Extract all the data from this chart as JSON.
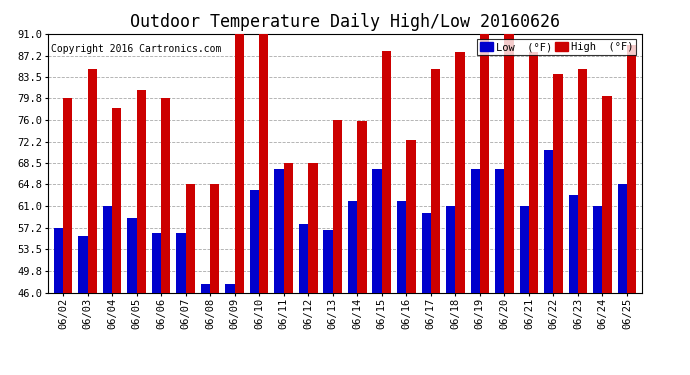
{
  "title": "Outdoor Temperature Daily High/Low 20160626",
  "copyright": "Copyright 2016 Cartronics.com",
  "legend_low": "Low  (°F)",
  "legend_high": "High  (°F)",
  "dates": [
    "06/02",
    "06/03",
    "06/04",
    "06/05",
    "06/06",
    "06/07",
    "06/08",
    "06/09",
    "06/10",
    "06/11",
    "06/12",
    "06/13",
    "06/14",
    "06/15",
    "06/16",
    "06/17",
    "06/18",
    "06/19",
    "06/20",
    "06/21",
    "06/22",
    "06/23",
    "06/24",
    "06/25"
  ],
  "highs": [
    79.8,
    84.9,
    78.1,
    81.3,
    79.8,
    64.9,
    64.9,
    91.0,
    91.0,
    68.5,
    68.5,
    76.0,
    75.9,
    88.0,
    72.5,
    84.9,
    87.8,
    91.0,
    91.0,
    87.8,
    84.0,
    84.9,
    80.1,
    89.0
  ],
  "lows": [
    57.2,
    55.9,
    61.0,
    58.9,
    56.3,
    56.3,
    47.5,
    47.5,
    63.9,
    67.5,
    57.9,
    56.8,
    61.9,
    67.5,
    62.0,
    59.9,
    61.0,
    67.5,
    67.5,
    61.0,
    70.7,
    62.9,
    61.0,
    64.9
  ],
  "ylim": [
    46.0,
    91.0
  ],
  "yticks": [
    46.0,
    49.8,
    53.5,
    57.2,
    61.0,
    64.8,
    68.5,
    72.2,
    76.0,
    79.8,
    83.5,
    87.2,
    91.0
  ],
  "low_color": "#0000cc",
  "high_color": "#cc0000",
  "bg_color": "#ffffff",
  "grid_color": "#aaaaaa",
  "bar_width": 0.38,
  "title_fontsize": 12,
  "tick_fontsize": 7.5,
  "copyright_fontsize": 7
}
